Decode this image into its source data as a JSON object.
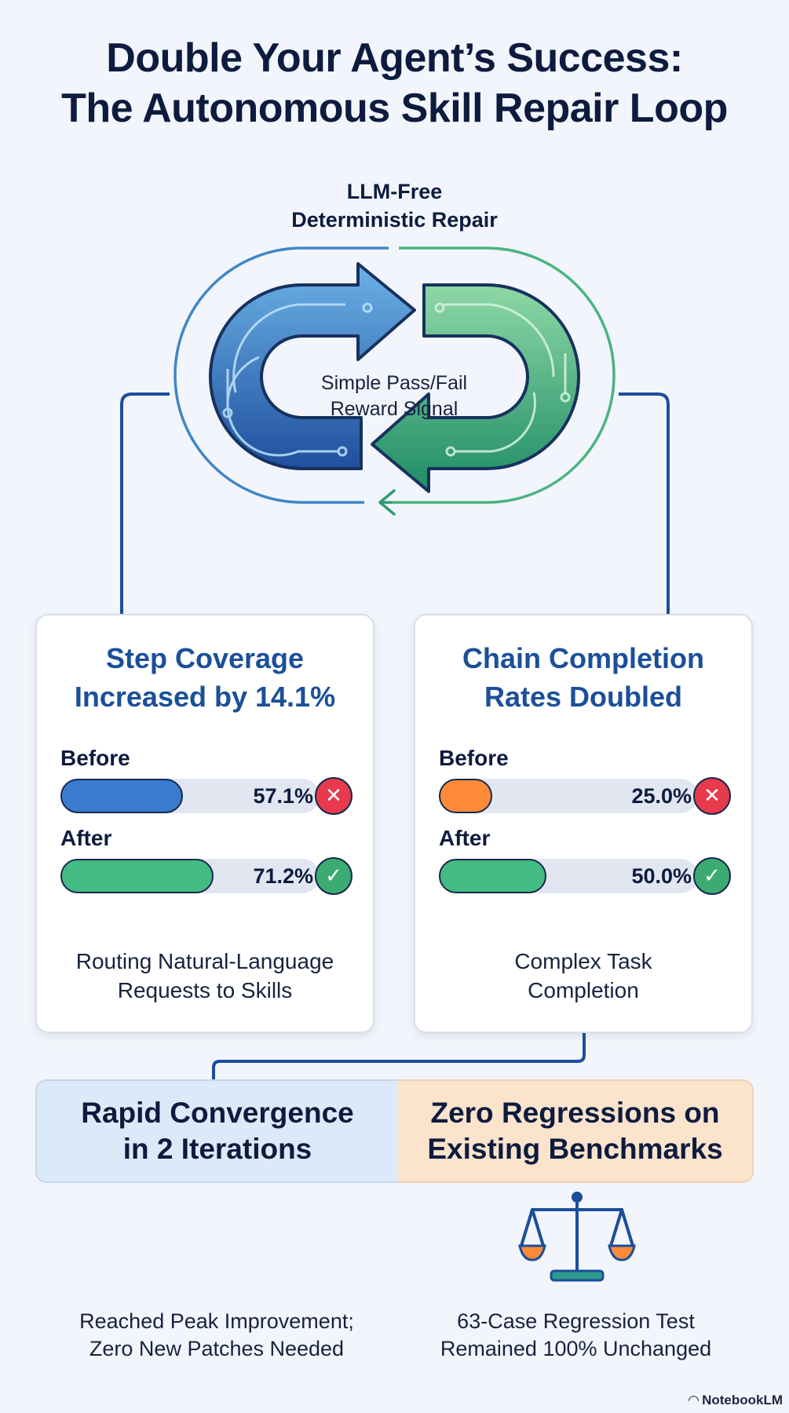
{
  "title": {
    "line1": "Double Your Agent’s Success:",
    "line2": "The Autonomous Skill Repair Loop"
  },
  "loop": {
    "label_line1": "LLM-Free",
    "label_line2": "Deterministic Repair",
    "center_line1": "Simple Pass/Fail",
    "center_line2": "Reward Signal"
  },
  "cards": [
    {
      "title_line1": "Step Coverage",
      "title_line2": "Increased by 14.1%",
      "before_label": "Before",
      "before_value": "57.1%",
      "before_fraction": 0.571,
      "after_label": "After",
      "after_value": "71.2%",
      "after_fraction": 0.712,
      "caption_line1": "Routing Natural-Language",
      "caption_line2": "Requests to Skills"
    },
    {
      "title_line1": "Chain Completion",
      "title_line2": "Rates Doubled",
      "before_label": "Before",
      "before_value": "25.0%",
      "before_fraction": 0.25,
      "after_label": "After",
      "after_value": "50.0%",
      "after_fraction": 0.5,
      "caption_line1": "Complex Task",
      "caption_line2": "Completion"
    }
  ],
  "banners": {
    "left_line1": "Rapid Convergence",
    "left_line2": "in 2 Iterations",
    "right_line1": "Zero Regressions on",
    "right_line2": "Existing Benchmarks"
  },
  "footnotes": {
    "left_line1": "Reached Peak Improvement;",
    "left_line2": "Zero New Patches Needed",
    "right_line1": "63-Case Regression Test",
    "right_line2": "Remained 100% Unchanged"
  },
  "brand": "NotebookLM",
  "icons": {
    "fail": "x-mark-icon",
    "pass": "check-mark-icon",
    "scale": "balance-scale-icon",
    "loop": "circular-arrows-icon"
  },
  "colors": {
    "blue_fill": "#3a7bd0",
    "green_fill": "#44bb83",
    "orange_fill": "#ff8a3a",
    "fail": "#e83a4d",
    "pass": "#3bab72",
    "title_blue": "#1b4f9a"
  }
}
